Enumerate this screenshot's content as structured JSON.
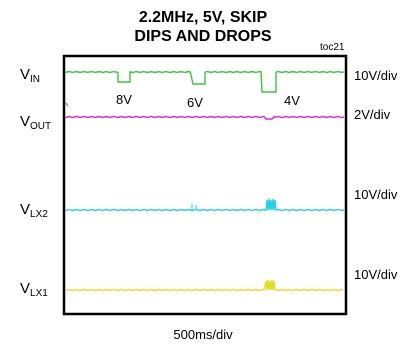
{
  "figure": {
    "title_line1": "2.2MHz, 5V, SKIP",
    "title_line2": "DIPS AND DROPS",
    "tag": "toc21",
    "time_scale": "500ms/div"
  },
  "chart_data": {
    "type": "line",
    "title": "2.2MHz, 5V, SKIP DIPS AND DROPS",
    "xlabel": "500ms/div",
    "grid": false,
    "channels": [
      {
        "id": "vin",
        "label_main": "V",
        "label_sub": "IN",
        "scale": "10V/div",
        "color": "#33cc33"
      },
      {
        "id": "vout",
        "label_main": "V",
        "label_sub": "OUT",
        "scale": "2V/div",
        "color": "#e020e0"
      },
      {
        "id": "vlx2",
        "label_main": "V",
        "label_sub": "LX2",
        "scale": "10V/div",
        "color": "#22d0e8"
      },
      {
        "id": "vlx1",
        "label_main": "V",
        "label_sub": "LX1",
        "scale": "10V/div",
        "color": "#e0e020"
      }
    ],
    "annotations": [
      "8V",
      "6V",
      "4V"
    ]
  }
}
